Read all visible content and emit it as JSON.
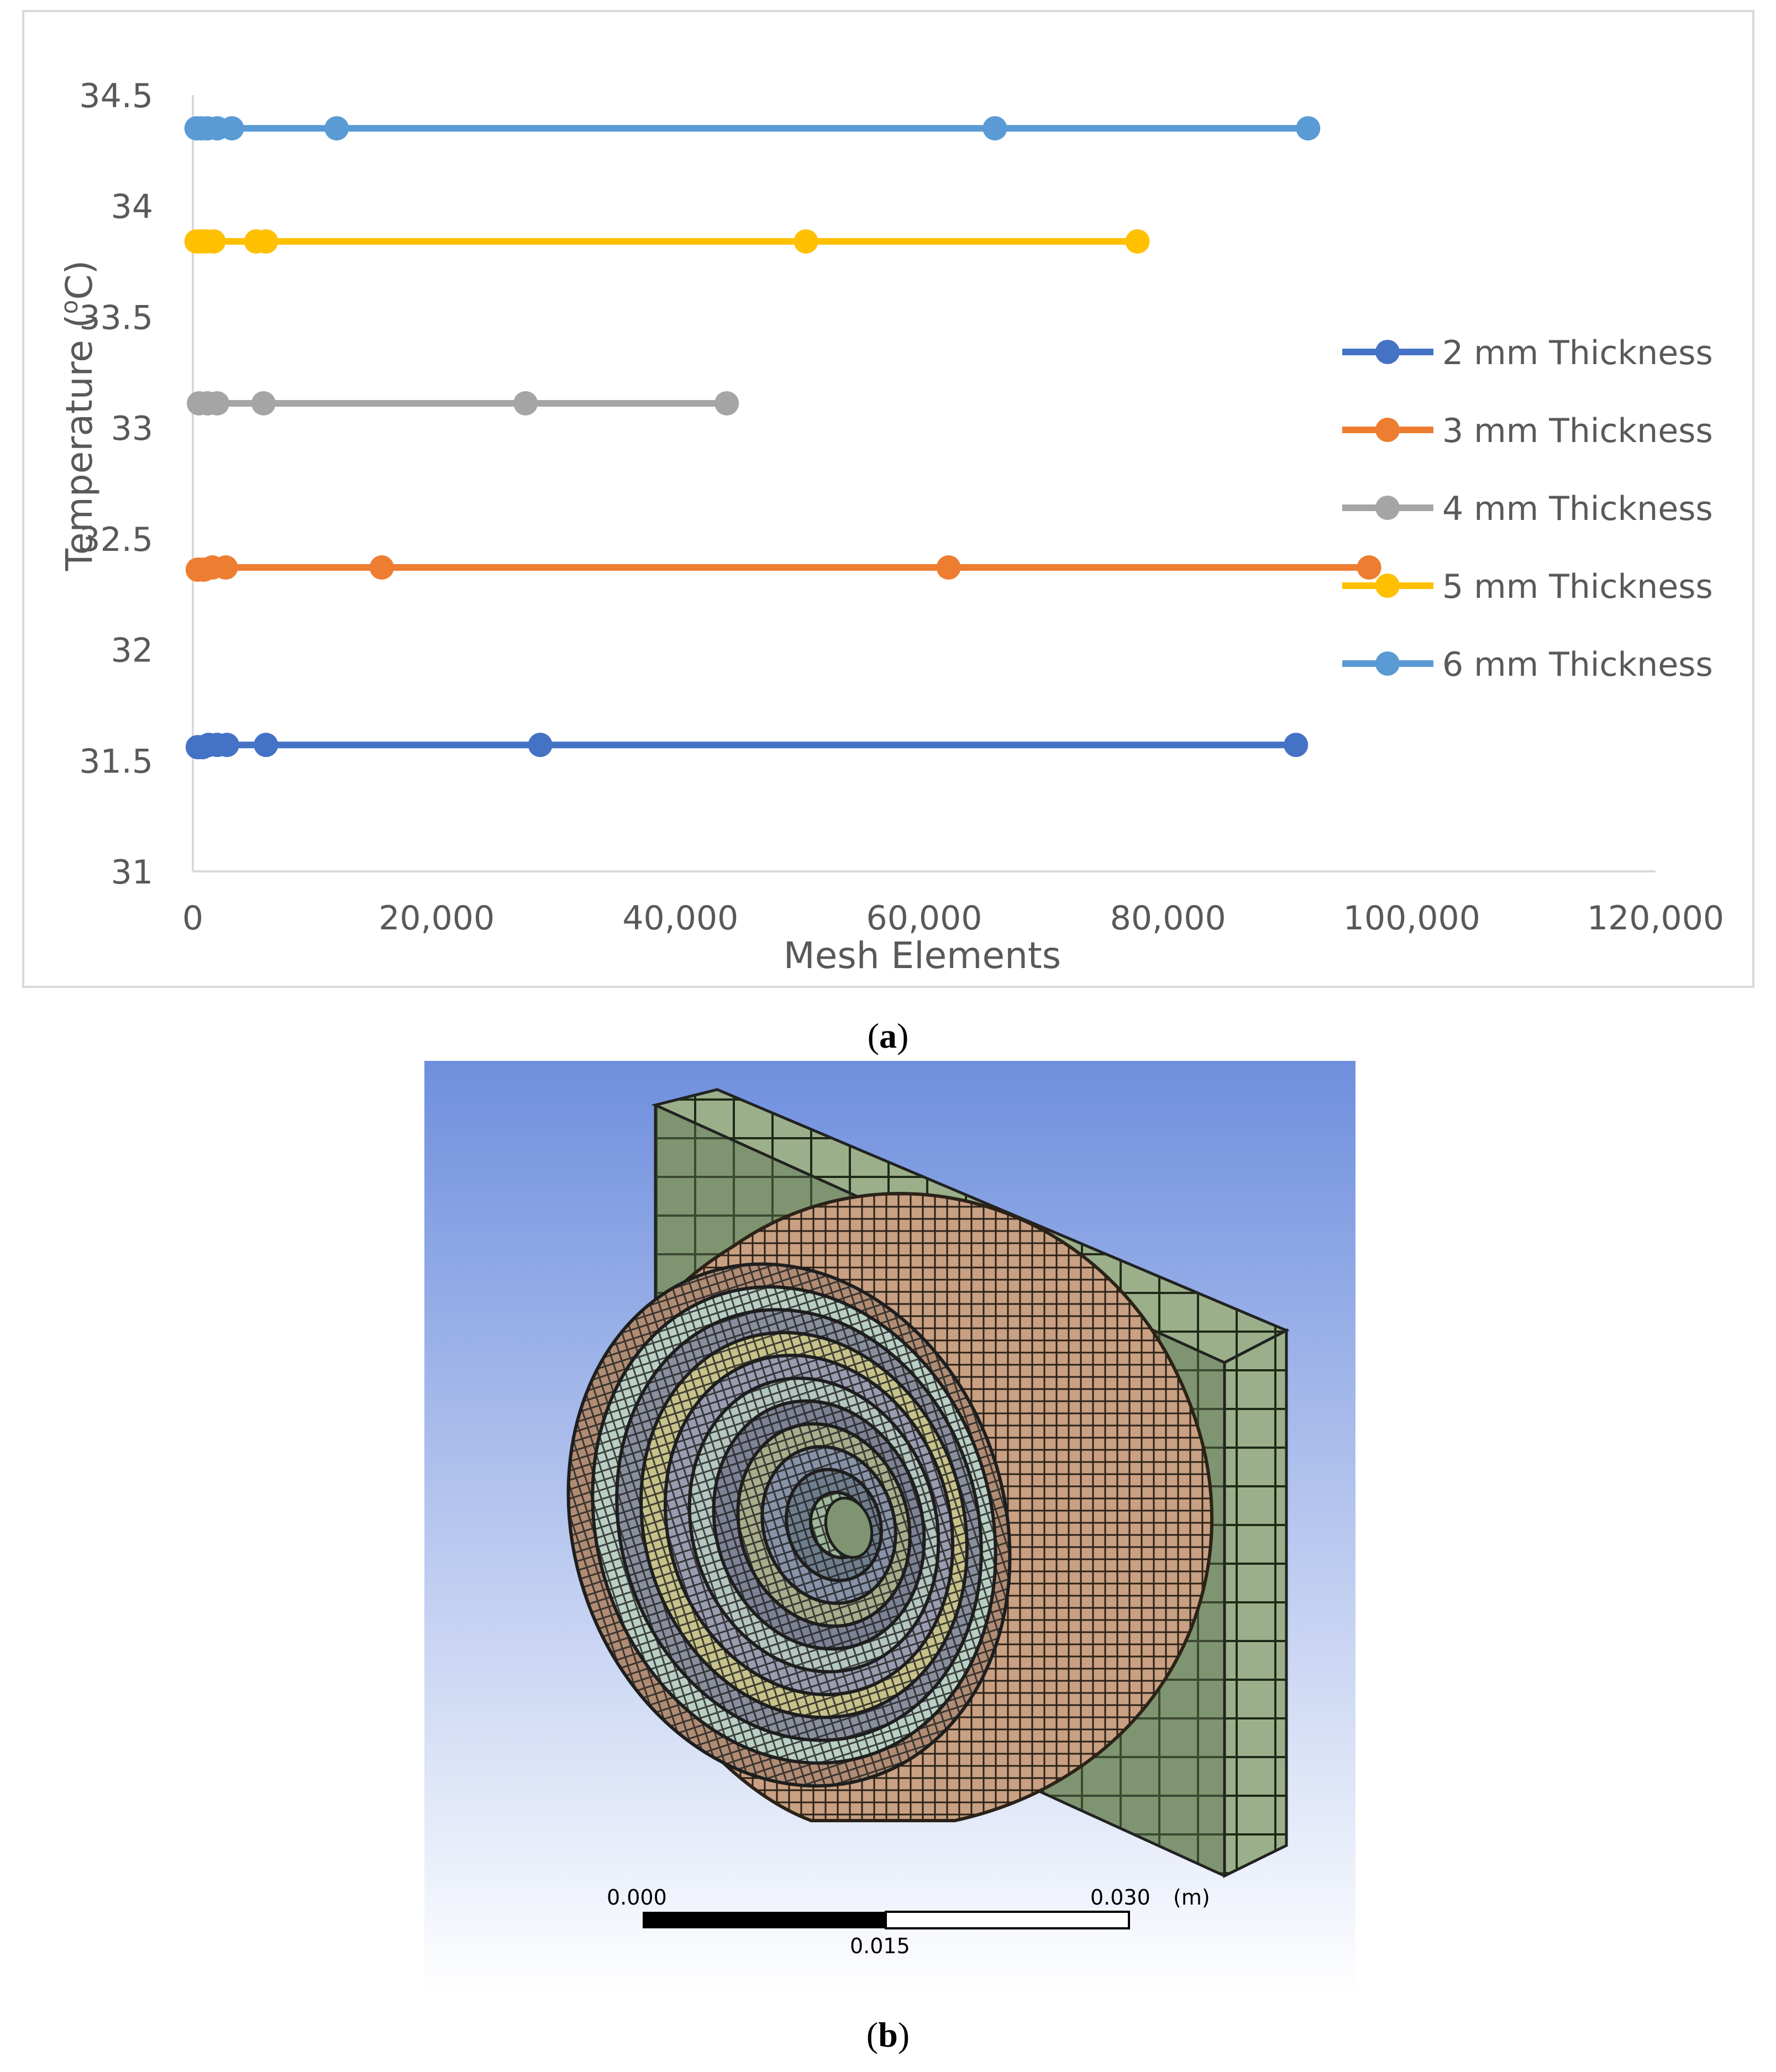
{
  "chart_data": {
    "type": "scatter",
    "xlabel": "Mesh Elements",
    "ylabel": "Temperature (oC)",
    "ylabel_main": "Temperature (",
    "ylabel_sup": "o",
    "ylabel_end": "C)",
    "xlim": [
      0,
      120000
    ],
    "ylim": [
      31,
      34.5
    ],
    "x_ticks": [
      0,
      20000,
      40000,
      60000,
      80000,
      100000,
      120000
    ],
    "x_tick_labels": [
      "0",
      "20,000",
      "40,000",
      "60,000",
      "80,000",
      "100,000",
      "120,000"
    ],
    "y_ticks": [
      31,
      31.5,
      32,
      32.5,
      33,
      33.5,
      34,
      34.5
    ],
    "y_tick_labels": [
      "31",
      "31.5",
      "32",
      "32.5",
      "33",
      "33.5",
      "34",
      "34.5"
    ],
    "grid": false,
    "legend_position": "right",
    "series": [
      {
        "name": "2 mm Thickness",
        "color": "#4472c4",
        "points": [
          [
            400,
            31.56
          ],
          [
            800,
            31.56
          ],
          [
            1300,
            31.57
          ],
          [
            2000,
            31.57
          ],
          [
            2800,
            31.57
          ],
          [
            6000,
            31.57
          ],
          [
            28500,
            31.57
          ],
          [
            90500,
            31.57
          ]
        ]
      },
      {
        "name": "3 mm Thickness",
        "color": "#ed7d31",
        "points": [
          [
            400,
            32.36
          ],
          [
            900,
            32.36
          ],
          [
            1600,
            32.37
          ],
          [
            2700,
            32.37
          ],
          [
            15500,
            32.37
          ],
          [
            62000,
            32.37
          ],
          [
            96500,
            32.37
          ]
        ]
      },
      {
        "name": "4 mm Thickness",
        "color": "#a5a5a5",
        "points": [
          [
            500,
            33.11
          ],
          [
            1200,
            33.11
          ],
          [
            2000,
            33.11
          ],
          [
            5800,
            33.11
          ],
          [
            27300,
            33.11
          ],
          [
            43800,
            33.11
          ]
        ]
      },
      {
        "name": "5 mm Thickness",
        "color": "#ffc000",
        "points": [
          [
            300,
            33.84
          ],
          [
            700,
            33.84
          ],
          [
            1100,
            33.84
          ],
          [
            1700,
            33.84
          ],
          [
            5200,
            33.84
          ],
          [
            6000,
            33.84
          ],
          [
            50300,
            33.84
          ],
          [
            77500,
            33.84
          ]
        ]
      },
      {
        "name": "6 mm Thickness",
        "color": "#5b9bd5",
        "points": [
          [
            300,
            34.35
          ],
          [
            700,
            34.35
          ],
          [
            1200,
            34.35
          ],
          [
            2000,
            34.35
          ],
          [
            3200,
            34.35
          ],
          [
            11800,
            34.35
          ],
          [
            65800,
            34.35
          ],
          [
            91500,
            34.35
          ]
        ]
      }
    ]
  },
  "captions": {
    "a": "a",
    "b": "b"
  },
  "scale_bar": {
    "left_label": "0.000",
    "right_label": "0.030",
    "unit_label": "(m)",
    "mid_label": "0.015"
  },
  "colors": {
    "sky_top": "#6f8fde",
    "sky_bottom": "#ffffff",
    "plate": "#9bb08a",
    "outer_shell": "#c9a082"
  }
}
